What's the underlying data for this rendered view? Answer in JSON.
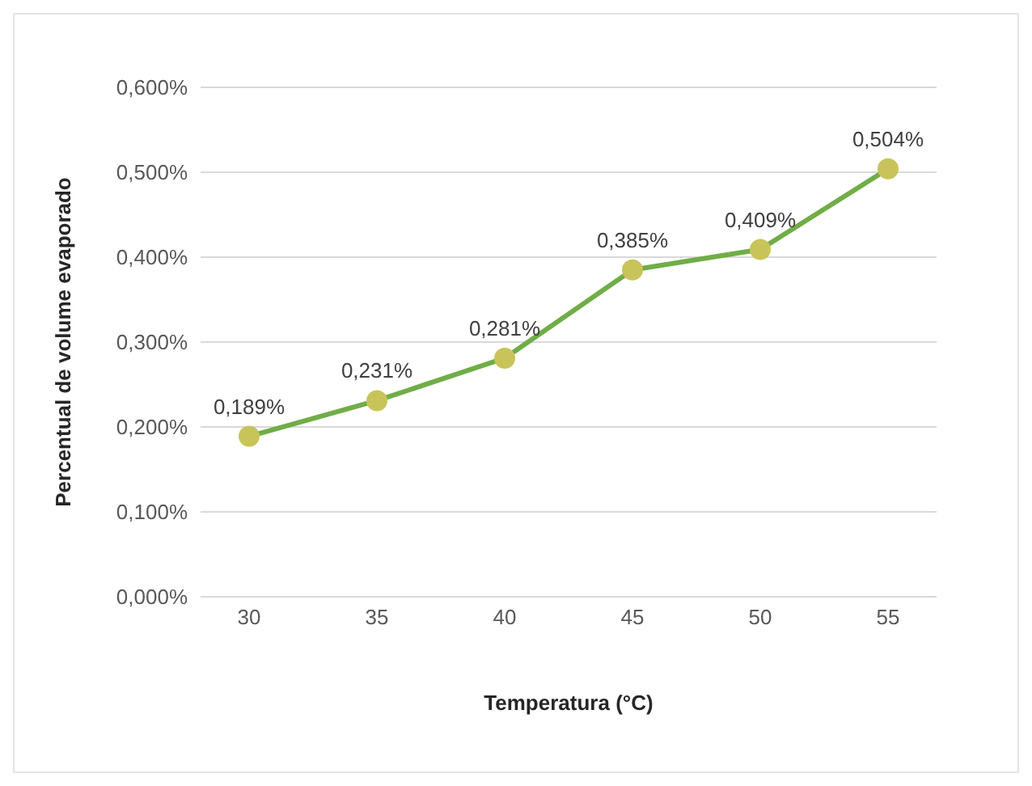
{
  "chart_data": {
    "type": "line",
    "xlabel": "Temperatura (°C)",
    "ylabel": "Percentual de volume evaporado",
    "categories": [
      "30",
      "35",
      "40",
      "45",
      "50",
      "55"
    ],
    "series": [
      {
        "color": "#70ad47",
        "values": [
          0.189,
          0.231,
          0.281,
          0.385,
          0.409,
          0.504
        ],
        "value_labels": [
          "0,189%",
          "0,231%",
          "0,281%",
          "0,385%",
          "0,409%",
          "0,504%"
        ]
      }
    ],
    "ylim": [
      0,
      0.6
    ],
    "yticks": [
      {
        "value": 0,
        "label": "0,000%"
      },
      {
        "value": 0.1,
        "label": "0,100%"
      },
      {
        "value": 0.2,
        "label": "0,200%"
      },
      {
        "value": 0.3,
        "label": "0,300%"
      },
      {
        "value": 0.4,
        "label": "0,400%"
      },
      {
        "value": 0.5,
        "label": "0,500%"
      },
      {
        "value": 0.6,
        "label": "0,600%"
      }
    ],
    "grid": "y",
    "legend": false,
    "marker": "circle",
    "line_style": "solid"
  }
}
